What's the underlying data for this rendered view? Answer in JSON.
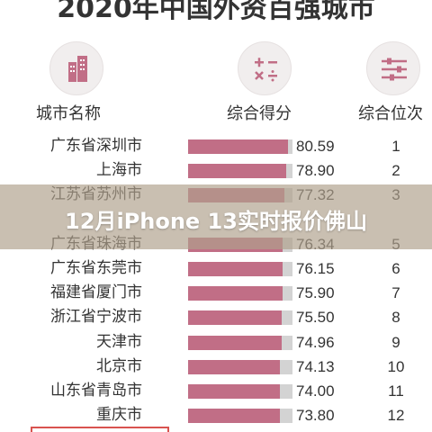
{
  "title": "2020年中国外资百强城市",
  "overlay_text": "12月iPhone 13实时报价佛山",
  "headers": {
    "city": "城市名称",
    "score": "综合得分",
    "rank": "综合位次"
  },
  "icons": [
    "city-building-icon",
    "math-operators-icon",
    "sliders-icon"
  ],
  "colors": {
    "bar": "#c16e86",
    "track": "#d3d3d3",
    "overlay": "#b0a08c",
    "highlight_box": "#d9534f"
  },
  "chart_data": {
    "type": "bar",
    "title": "2020年中国外资百强城市",
    "categories": [
      "广东省深圳市",
      "上海市",
      "江苏省苏州市",
      "",
      "广东省珠海市",
      "广东省东莞市",
      "福建省厦门市",
      "浙江省宁波市",
      "天津市",
      "北京市",
      "山东省青岛市",
      "重庆市"
    ],
    "values": [
      80.59,
      78.9,
      77.32,
      null,
      76.34,
      76.15,
      75.9,
      75.5,
      74.96,
      74.13,
      74.0,
      73.8
    ],
    "value_labels": [
      "80.59",
      "78.90",
      "77.32",
      "",
      "76.34",
      "76.15",
      "75.90",
      "75.50",
      "74.96",
      "74.13",
      "74.00",
      "73.80"
    ],
    "ranks": [
      "1",
      "2",
      "3",
      "",
      "5",
      "6",
      "7",
      "8",
      "9",
      "10",
      "11",
      "12"
    ],
    "xlim": [
      0,
      84
    ],
    "orientation": "horizontal"
  }
}
